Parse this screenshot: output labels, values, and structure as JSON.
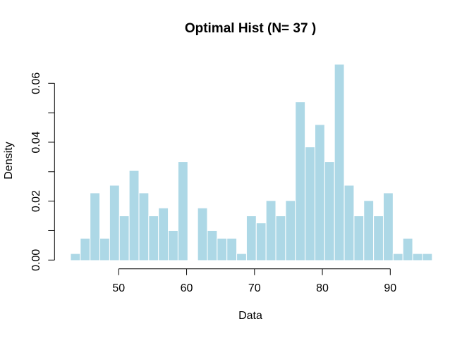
{
  "window": {
    "background": "#FFFFFF"
  },
  "chart_data": {
    "type": "bar",
    "subtype": "histogram",
    "title": "Optimal Hist (N= 37 )",
    "xlabel": "Data",
    "ylabel": "Density",
    "n_bins": 37,
    "bin_start": 42.9,
    "bin_width": 1.44,
    "densities": [
      0.0022,
      0.0074,
      0.0228,
      0.0074,
      0.0254,
      0.015,
      0.0304,
      0.0228,
      0.015,
      0.0177,
      0.01,
      0.0334,
      0,
      0.0177,
      0.01,
      0.0074,
      0.0074,
      0.0022,
      0.015,
      0.0126,
      0.0202,
      0.015,
      0.0202,
      0.0537,
      0.0384,
      0.046,
      0.0334,
      0.0665,
      0.0254,
      0.015,
      0.0202,
      0.015,
      0.0228,
      0.0022,
      0.0074,
      0.0022,
      0.0022
    ],
    "x_ticks": [
      50,
      60,
      70,
      80,
      90
    ],
    "y_ticks": [
      0,
      0.01,
      0.02,
      0.03,
      0.04,
      0.05,
      0.06
    ],
    "y_tick_labels": [
      {
        "value": 0,
        "label": "0.00"
      },
      {
        "value": 0.02,
        "label": "0.02"
      },
      {
        "value": 0.04,
        "label": "0.04"
      },
      {
        "value": 0.06,
        "label": "0.06"
      }
    ],
    "x_range": [
      42.9,
      96.18
    ],
    "ylim": [
      0,
      0.0665
    ],
    "grid": false,
    "legend": "none",
    "colors": {
      "bar_fill": "#ADD8E6",
      "bar_border": "#FFFFFF",
      "axis": "#000000",
      "text": "#000000"
    }
  }
}
